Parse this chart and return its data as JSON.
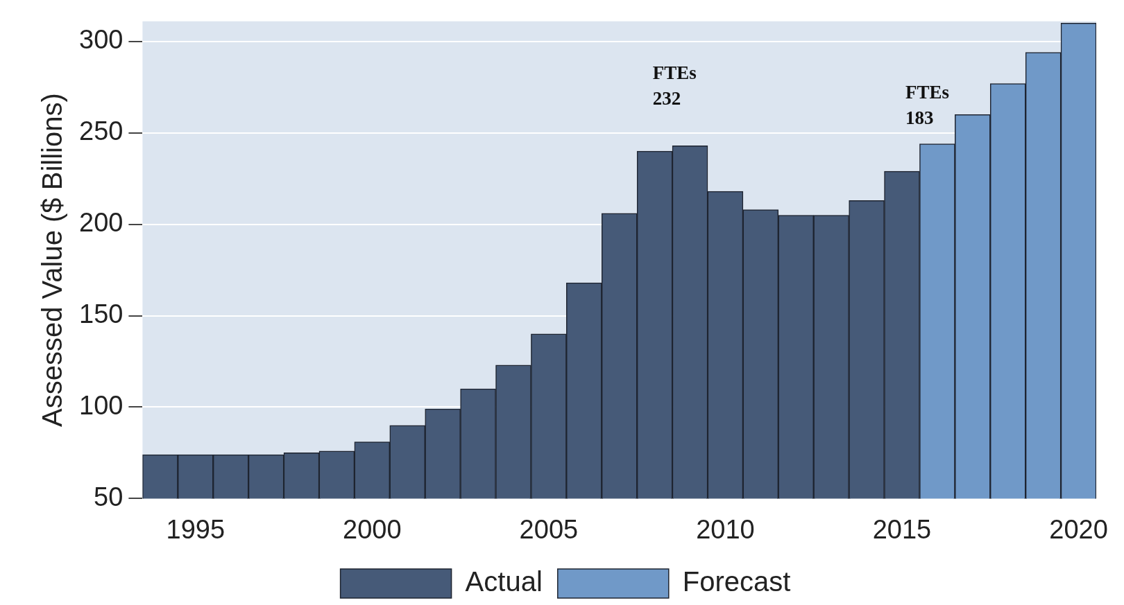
{
  "chart_data": {
    "type": "bar",
    "ylabel": "Assessed Value ($ Billions)",
    "xlim": [
      1993.5,
      2020.5
    ],
    "xticks": [
      1995,
      2000,
      2005,
      2010,
      2015,
      2020
    ],
    "ylim": [
      50,
      311
    ],
    "yticks": [
      50,
      100,
      150,
      200,
      250,
      300
    ],
    "grid": "y",
    "legend": "bottom",
    "series": [
      {
        "name": "Actual",
        "color": "#465a78",
        "x": [
          1994,
          1995,
          1996,
          1997,
          1998,
          1999,
          2000,
          2001,
          2002,
          2003,
          2004,
          2005,
          2006,
          2007,
          2008,
          2009,
          2010,
          2011,
          2012,
          2013,
          2014,
          2015
        ],
        "values": [
          74,
          74,
          74,
          74,
          75,
          76,
          81,
          90,
          99,
          110,
          123,
          140,
          168,
          206,
          240,
          243,
          218,
          208,
          205,
          205,
          213,
          229
        ]
      },
      {
        "name": "Forecast",
        "color": "#7099c8",
        "x": [
          2016,
          2017,
          2018,
          2019,
          2020
        ],
        "values": [
          244,
          260,
          277,
          294,
          310
        ]
      }
    ],
    "annotations": [
      "FTEs\n232",
      "FTEs\n183"
    ]
  }
}
